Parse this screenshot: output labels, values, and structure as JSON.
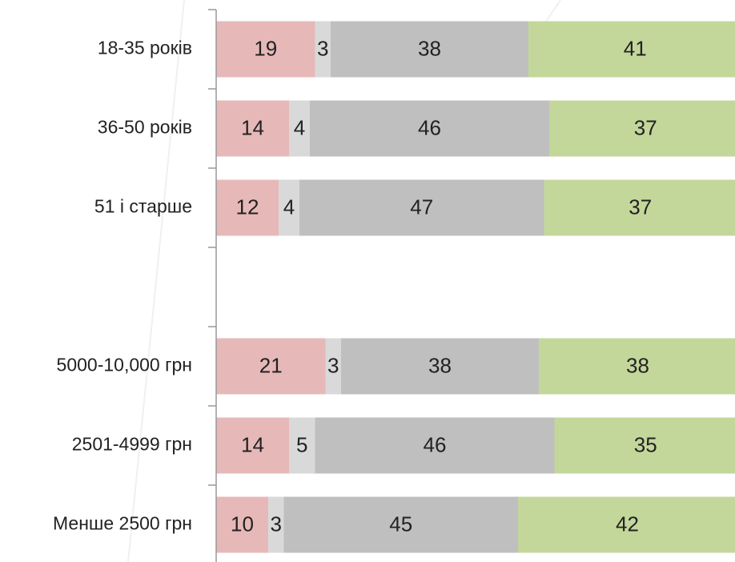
{
  "chart_data": {
    "type": "stacked-barh",
    "categories": [
      "18-35 років",
      "36-50 років",
      "51 і старше",
      null,
      "5000-10,000 грн",
      "2501-4999 грн",
      "Менше 2500 грн"
    ],
    "series": [
      {
        "color": "#e6b9b8",
        "values": [
          19,
          14,
          12,
          null,
          21,
          14,
          10
        ]
      },
      {
        "color": "#d9d9d9",
        "values": [
          3,
          4,
          4,
          null,
          3,
          5,
          3
        ]
      },
      {
        "color": "#bfbfbf",
        "values": [
          38,
          46,
          47,
          null,
          38,
          46,
          45
        ]
      },
      {
        "color": "#c4d79b",
        "values": [
          41,
          37,
          37,
          null,
          38,
          35,
          42
        ]
      }
    ],
    "xlim": [
      0,
      100
    ]
  }
}
